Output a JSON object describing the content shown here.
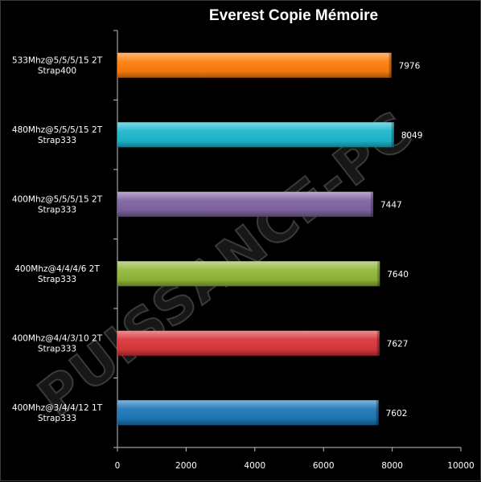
{
  "chart_data": {
    "type": "bar",
    "orientation": "horizontal",
    "title": "Everest Copie Mémoire",
    "categories": [
      [
        "533Mhz@5/5/5/15  2T",
        "Strap400"
      ],
      [
        "480Mhz@5/5/5/15  2T",
        "Strap333"
      ],
      [
        "400Mhz@5/5/5/15  2T",
        "Strap333"
      ],
      [
        "400Mhz@4/4/4/6  2T",
        "Strap333"
      ],
      [
        "400Mhz@4/4/3/10  2T",
        "Strap333"
      ],
      [
        "400Mhz@3/4/4/12  1T",
        "Strap333"
      ]
    ],
    "values": [
      7976,
      8049,
      7447,
      7640,
      7627,
      7602
    ],
    "colors": [
      "#ff7f0e",
      "#1fb8cf",
      "#8064a2",
      "#92b83a",
      "#d9373c",
      "#1f78b9"
    ],
    "xlim": [
      0,
      10000
    ],
    "xticks": [
      "0",
      "2000",
      "4000",
      "6000",
      "8000",
      "10000"
    ],
    "grid": false,
    "legend": "none"
  },
  "watermark": "PUISSANCE-PC"
}
